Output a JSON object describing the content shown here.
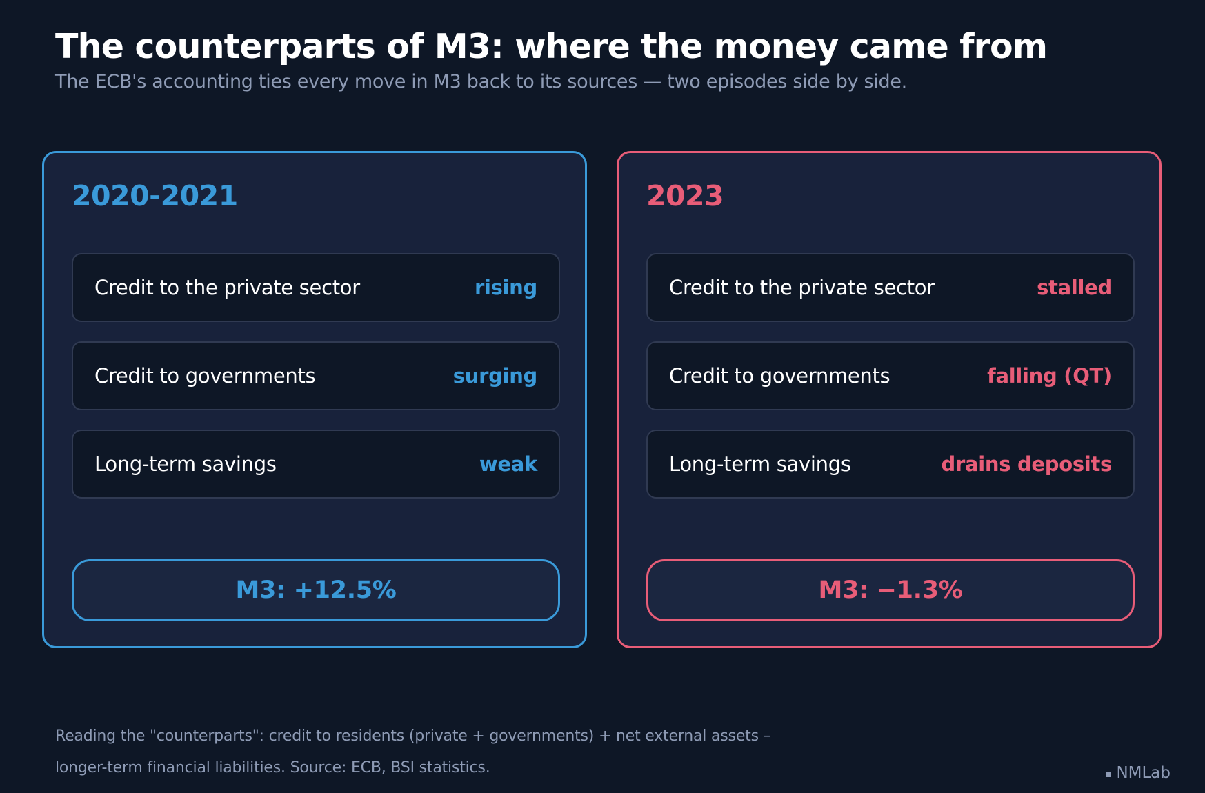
{
  "title": "The counterparts of M3: where the money came from",
  "subtitle": "The ECB's accounting ties every move in M3 back to its sources — two episodes side by side.",
  "colors": {
    "background": "#0e1726",
    "panel": "#18223b",
    "accent_left": "#3a9ad9",
    "accent_right": "#e85d78",
    "muted_text": "#8e9bb5"
  },
  "panels": [
    {
      "period": "2020-2021",
      "rows": [
        {
          "label": "Credit to the private sector",
          "value": "rising"
        },
        {
          "label": "Credit to governments",
          "value": "surging"
        },
        {
          "label": "Long-term savings",
          "value": "weak"
        }
      ],
      "total": "M3: +12.5%"
    },
    {
      "period": "2023",
      "rows": [
        {
          "label": "Credit to the private sector",
          "value": "stalled"
        },
        {
          "label": "Credit to governments",
          "value": "falling (QT)"
        },
        {
          "label": "Long-term savings",
          "value": "drains deposits"
        }
      ],
      "total": "M3: −1.3%"
    }
  ],
  "footnote": "Reading the \"counterparts\": credit to residents (private + governments) + net external assets – longer-term financial liabilities. Source: ECB, BSI statistics.",
  "brand": {
    "icon": "square-icon",
    "name": "NMLab"
  }
}
